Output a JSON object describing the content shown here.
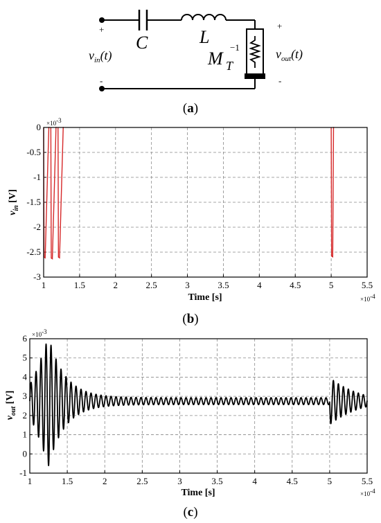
{
  "circuit": {
    "capacitor_label": "C",
    "inductor_label": "L",
    "load_label": "M",
    "load_sub": "T",
    "load_sup": "−1",
    "vin_main": "v",
    "vin_sub": "in",
    "vin_arg": "(t)",
    "vout_main": "v",
    "vout_sub": "out",
    "vout_arg": "(t)",
    "plus": "+",
    "minus": "-",
    "panel_label_left": "(",
    "panel_label_letter": "a",
    "panel_label_right": ")"
  },
  "chart_data": [
    {
      "type": "line",
      "panel_label": {
        "left": "(",
        "letter": "b",
        "right": ")"
      },
      "xlabel": "Time [s]",
      "ylabel_main": "v",
      "ylabel_sub": "in",
      "ylabel_unit": " [V]",
      "x_multiplier": "×10",
      "x_multiplier_exp": "-4",
      "y_multiplier": "×10",
      "y_multiplier_exp": "-3",
      "xlim": [
        1,
        5.5
      ],
      "ylim": [
        -3,
        0
      ],
      "xticks": [
        "1",
        "1.5",
        "2",
        "2.5",
        "3",
        "3.5",
        "4",
        "4.5",
        "5",
        "5.5"
      ],
      "yticks": [
        "0",
        "-0.5",
        "-1",
        "-1.5",
        "-2",
        "-2.5",
        "-3"
      ],
      "grid": true,
      "color": "#d62728",
      "pulses": [
        {
          "start": 1.0,
          "end": 1.08,
          "low": -2.6
        },
        {
          "start": 1.1,
          "end": 1.18,
          "low": -2.62
        },
        {
          "start": 1.2,
          "end": 1.28,
          "low": -2.6
        },
        {
          "start": 5.0,
          "end": 5.04,
          "low": -2.58
        }
      ]
    },
    {
      "type": "line",
      "panel_label": {
        "left": "(",
        "letter": "c",
        "right": ")"
      },
      "xlabel": "Time [s]",
      "ylabel_main": "v",
      "ylabel_sub": "out",
      "ylabel_unit": " [V]",
      "x_multiplier": "×10",
      "x_multiplier_exp": "-4",
      "y_multiplier": "×10",
      "y_multiplier_exp": "-3",
      "xlim": [
        1,
        5.5
      ],
      "ylim": [
        -1,
        6
      ],
      "xticks": [
        "1",
        "1.5",
        "2",
        "2.5",
        "3",
        "3.5",
        "4",
        "4.5",
        "5",
        "5.5"
      ],
      "yticks": [
        "6",
        "5",
        "4",
        "3",
        "2",
        "1",
        "0",
        "-1"
      ],
      "grid": true,
      "color": "#000000",
      "signal": {
        "baseline": 2.75,
        "period": 0.0667,
        "steady_amp": 0.18,
        "burst1_start": 1.0,
        "burst1_peak_time": 1.27,
        "burst1_peak_amp": 2.9,
        "burst1_decay": 0.22,
        "burst2_start": 5.0,
        "burst2_amp": 1.4,
        "burst2_decay": 0.45
      }
    }
  ]
}
